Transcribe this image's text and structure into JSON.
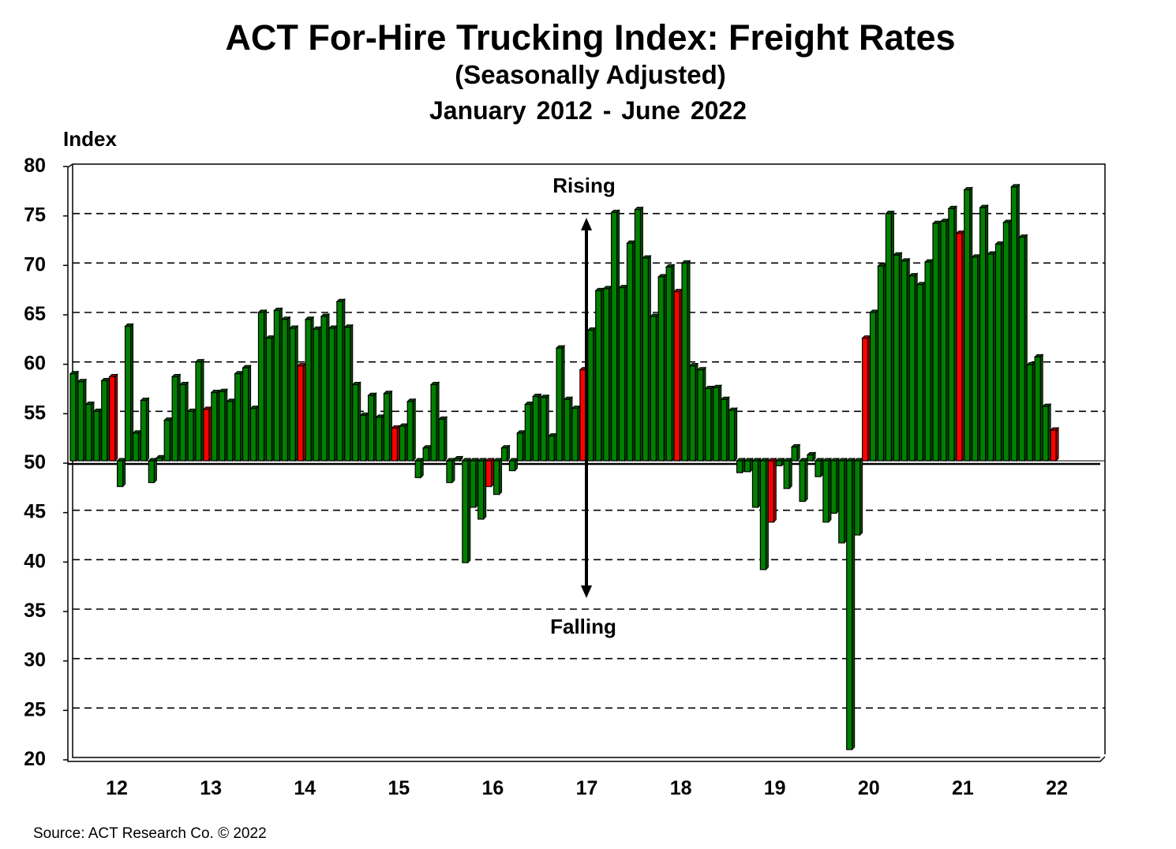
{
  "chart_data": {
    "type": "bar",
    "title": "ACT For-Hire Trucking Index: Freight Rates",
    "subtitle": "(Seasonally Adjusted)",
    "date_range": "January 2012 - June 2022",
    "ylabel": "Index",
    "ylim": [
      20,
      80
    ],
    "y_ticks": [
      "80",
      "75",
      "70",
      "65",
      "60",
      "55",
      "50",
      "45",
      "40",
      "35",
      "30",
      "25",
      "20"
    ],
    "x_tick_labels": [
      "12",
      "13",
      "14",
      "15",
      "16",
      "17",
      "18",
      "19",
      "20",
      "21",
      "22"
    ],
    "baseline": 50,
    "grid": "horizontal dashed",
    "annotations": {
      "up": "Rising",
      "down": "Falling"
    },
    "colors": {
      "bar": "#008000",
      "june_bar": "#ff0000"
    },
    "highlighted_month": "June",
    "monthly_values_by_year": {
      "2012": [
        58.8,
        58.0,
        55.7,
        55.0,
        58.1,
        58.5,
        47.4,
        63.6,
        52.8,
        56.1,
        47.8,
        50.3
      ],
      "2013": [
        54.1,
        58.5,
        57.7,
        55.0,
        60.0,
        55.2,
        56.9,
        57.0,
        56.0,
        58.8,
        59.4,
        55.3
      ],
      "2014": [
        65.0,
        62.4,
        65.2,
        64.3,
        63.4,
        59.6,
        64.3,
        63.3,
        64.6,
        63.4,
        66.1,
        63.5
      ],
      "2015": [
        57.7,
        54.6,
        56.6,
        54.4,
        56.8,
        53.3,
        53.5,
        56.0,
        48.3,
        51.3,
        57.7,
        54.2
      ],
      "2016": [
        47.8,
        50.2,
        39.7,
        45.3,
        44.1,
        47.4,
        46.6,
        51.3,
        49.0,
        52.8,
        55.7,
        56.5
      ],
      "2017": [
        56.4,
        52.5,
        61.4,
        56.2,
        55.3,
        59.2,
        63.2,
        67.2,
        67.4,
        75.1,
        67.5,
        72.0
      ],
      "2018": [
        75.4,
        70.5,
        64.6,
        68.6,
        69.6,
        67.1,
        70.0,
        59.6,
        59.2,
        57.3,
        57.4,
        56.2
      ],
      "2019": [
        55.1,
        48.8,
        48.9,
        45.3,
        39.0,
        43.8,
        49.5,
        47.2,
        51.4,
        45.9,
        50.6,
        48.4
      ],
      "2020": [
        43.8,
        44.7,
        41.7,
        20.8,
        42.5,
        62.4,
        65.0,
        69.7,
        75.0,
        70.8,
        70.2,
        68.7
      ],
      "2021": [
        67.8,
        70.1,
        74.0,
        74.2,
        75.5,
        73.0,
        77.4,
        70.6,
        75.6,
        70.9,
        71.9,
        74.1
      ],
      "2022": [
        77.7,
        72.6,
        59.7,
        60.5,
        55.5,
        53.1
      ]
    }
  },
  "source": "Source: ACT Research Co. © 2022"
}
